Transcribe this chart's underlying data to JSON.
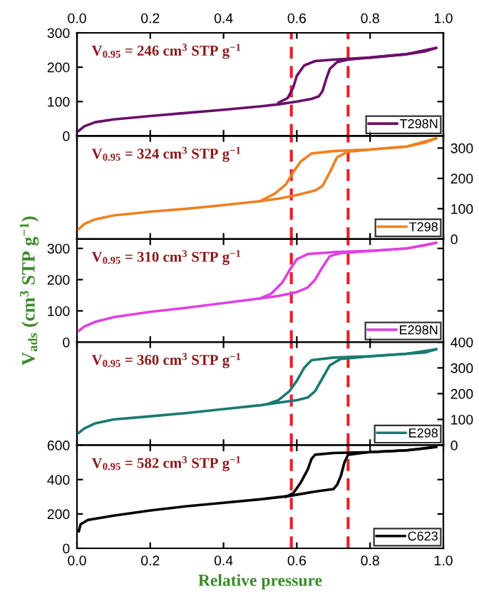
{
  "chart_data": [
    {
      "type": "line",
      "annotations": [
        "V$_{0.95}$ = 246 cm$^{3}$ STP g$^{−1}$"
      ],
      "x2lim": [
        0,
        1
      ],
      "x2ticks": [
        {
          "value": 0,
          "label": "0.0"
        },
        0.2,
        0.4,
        0.6,
        0.8,
        {
          "value": 1,
          "label": "1.0"
        }
      ],
      "xlim": [
        0,
        1
      ],
      "ylim": [
        0,
        300
      ],
      "yticks": [
        0,
        100,
        200,
        300
      ],
      "tick_labels": "y",
      "legend": "bottom right",
      "ref_lines": [
        {
          "axis": "x",
          "value": 0.585,
          "color": "#e8202a",
          "line_style": "dashed"
        },
        {
          "axis": "x",
          "value": 0.74,
          "color": "#e8202a",
          "line_style": "dashed"
        }
      ],
      "series": [
        {
          "name": "T298N",
          "color": "#6a0f6a",
          "x": [
            0.005,
            0.02,
            0.05,
            0.1,
            0.2,
            0.3,
            0.4,
            0.5,
            0.55,
            0.6,
            0.64,
            0.66,
            0.67,
            0.68,
            0.69,
            0.71,
            0.74,
            0.8,
            0.9,
            0.95,
            0.98
          ],
          "values": [
            15,
            28,
            40,
            48,
            58,
            67,
            76,
            86,
            92,
            100,
            108,
            115,
            130,
            165,
            195,
            215,
            222,
            228,
            238,
            246,
            256
          ]
        },
        {
          "color": "#6a0f6a",
          "x": [
            0.98,
            0.9,
            0.8,
            0.7,
            0.65,
            0.62,
            0.6,
            0.59,
            0.575,
            0.55
          ],
          "values": [
            256,
            238,
            228,
            222,
            218,
            205,
            175,
            140,
            110,
            97
          ]
        }
      ]
    },
    {
      "type": "line",
      "annotations": [
        "V$_{0.95}$ = 324 cm$^{3}$ STP g$^{−1}$"
      ],
      "xlim": [
        0,
        1
      ],
      "y2lim": [
        0,
        340
      ],
      "y2ticks": [
        0,
        100,
        200,
        300
      ],
      "tick_labels": "y",
      "legend": "bottom right",
      "ref_lines": [
        {
          "axis": "x",
          "value": 0.585,
          "color": "#e8202a",
          "line_style": "dashed"
        },
        {
          "axis": "x",
          "value": 0.74,
          "color": "#e8202a",
          "line_style": "dashed"
        }
      ],
      "series": [
        {
          "name": "T298",
          "color": "#f08020",
          "axis": "y2",
          "x": [
            0.005,
            0.02,
            0.05,
            0.1,
            0.2,
            0.3,
            0.4,
            0.5,
            0.55,
            0.6,
            0.65,
            0.67,
            0.69,
            0.71,
            0.74,
            0.8,
            0.9,
            0.95,
            0.98
          ],
          "values": [
            33,
            50,
            65,
            78,
            90,
            100,
            112,
            125,
            133,
            145,
            160,
            175,
            220,
            270,
            288,
            295,
            305,
            318,
            332
          ]
        },
        {
          "color": "#f08020",
          "axis": "y2",
          "x": [
            0.98,
            0.9,
            0.8,
            0.7,
            0.64,
            0.61,
            0.59,
            0.57,
            0.54,
            0.5
          ],
          "values": [
            332,
            305,
            295,
            290,
            282,
            255,
            220,
            180,
            150,
            125
          ]
        }
      ]
    },
    {
      "type": "line",
      "annotations": [
        "V$_{0.95}$ = 310 cm$^{3}$ STP g$^{−1}$"
      ],
      "xlim": [
        0,
        1
      ],
      "ylim": [
        0,
        330
      ],
      "yticks": [
        0,
        100,
        200,
        300
      ],
      "tick_labels": "y",
      "ylabel": "V$_{ads}$ (cm$^{3}$ STP g$^{−1}$)",
      "legend": "bottom right",
      "ref_lines": [
        {
          "axis": "x",
          "value": 0.585,
          "color": "#e8202a",
          "line_style": "dashed"
        },
        {
          "axis": "x",
          "value": 0.74,
          "color": "#e8202a",
          "line_style": "dashed"
        }
      ],
      "series": [
        {
          "name": "E298N",
          "color": "#e040e0",
          "x": [
            0.005,
            0.02,
            0.05,
            0.1,
            0.2,
            0.3,
            0.4,
            0.5,
            0.55,
            0.6,
            0.63,
            0.65,
            0.67,
            0.69,
            0.72,
            0.8,
            0.9,
            0.95,
            0.98
          ],
          "values": [
            36,
            50,
            65,
            80,
            97,
            110,
            125,
            140,
            148,
            160,
            175,
            200,
            240,
            275,
            285,
            292,
            300,
            310,
            318
          ]
        },
        {
          "color": "#e040e0",
          "x": [
            0.98,
            0.9,
            0.8,
            0.7,
            0.63,
            0.6,
            0.58,
            0.56,
            0.53,
            0.5
          ],
          "values": [
            318,
            300,
            292,
            288,
            282,
            265,
            230,
            190,
            155,
            140
          ]
        }
      ]
    },
    {
      "type": "line",
      "annotations": [
        "V$_{0.95}$ = 360 cm$^{3}$ STP g$^{−1}$"
      ],
      "xlim": [
        0,
        1
      ],
      "y2lim": [
        0,
        400
      ],
      "y2ticks": [
        0,
        100,
        200,
        300,
        400
      ],
      "tick_labels": "y",
      "legend": "bottom right",
      "ref_lines": [
        {
          "axis": "x",
          "value": 0.585,
          "color": "#e8202a",
          "line_style": "dashed"
        },
        {
          "axis": "x",
          "value": 0.74,
          "color": "#e8202a",
          "line_style": "dashed"
        }
      ],
      "series": [
        {
          "name": "E298",
          "color": "#1a7a72",
          "axis": "y2",
          "x": [
            0.005,
            0.02,
            0.05,
            0.1,
            0.2,
            0.3,
            0.4,
            0.5,
            0.55,
            0.6,
            0.63,
            0.65,
            0.67,
            0.69,
            0.72,
            0.8,
            0.9,
            0.95,
            0.98
          ],
          "values": [
            48,
            65,
            85,
            100,
            112,
            125,
            140,
            155,
            165,
            175,
            185,
            210,
            260,
            310,
            335,
            345,
            355,
            360,
            372
          ]
        },
        {
          "color": "#1a7a72",
          "axis": "y2",
          "x": [
            0.98,
            0.9,
            0.8,
            0.7,
            0.64,
            0.62,
            0.6,
            0.58,
            0.55,
            0.52
          ],
          "values": [
            372,
            355,
            345,
            340,
            330,
            300,
            250,
            210,
            175,
            160
          ]
        }
      ]
    },
    {
      "type": "line",
      "annotations": [
        "V$_{0.95}$ = 582 cm$^{3}$ STP g$^{−1}$"
      ],
      "xlim": [
        0,
        1
      ],
      "xticks": [
        {
          "value": 0,
          "label": "0.0"
        },
        0.2,
        0.4,
        0.6,
        0.8,
        {
          "value": 1,
          "label": "1.0"
        }
      ],
      "ylim": [
        0,
        600
      ],
      "yticks": [
        0,
        200,
        400,
        600
      ],
      "xlabel": "Relative pressure",
      "legend": "bottom right",
      "ref_lines": [
        {
          "axis": "x",
          "value": 0.585,
          "color": "#e8202a",
          "line_style": "dashed"
        },
        {
          "axis": "x",
          "value": 0.74,
          "color": "#e8202a",
          "line_style": "dashed"
        }
      ],
      "series": [
        {
          "name": "C623",
          "color": "#000000",
          "x": [
            0.005,
            0.01,
            0.03,
            0.1,
            0.2,
            0.3,
            0.4,
            0.5,
            0.58,
            0.65,
            0.7,
            0.71,
            0.72,
            0.73,
            0.74,
            0.8,
            0.9,
            0.95,
            0.98
          ],
          "values": [
            100,
            140,
            165,
            190,
            220,
            245,
            265,
            285,
            305,
            330,
            345,
            370,
            420,
            500,
            545,
            560,
            570,
            582,
            590
          ]
        },
        {
          "color": "#000000",
          "x": [
            0.98,
            0.9,
            0.8,
            0.7,
            0.65,
            0.64,
            0.63,
            0.61,
            0.59,
            0.57
          ],
          "values": [
            590,
            570,
            560,
            555,
            545,
            520,
            460,
            380,
            320,
            300
          ]
        }
      ]
    }
  ]
}
